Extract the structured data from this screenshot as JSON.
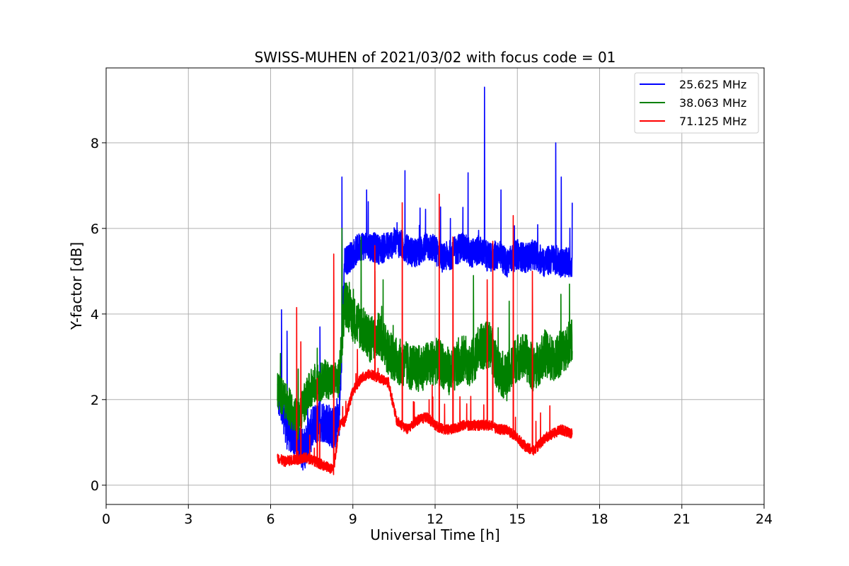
{
  "chart_data": {
    "type": "line",
    "title": "SWISS-MUHEN of 2021/03/02 with focus code = 01",
    "xlabel": "Universal Time [h]",
    "ylabel": "Y-factor [dB]",
    "xlim": [
      0,
      24
    ],
    "ylim": [
      -0.45,
      9.75
    ],
    "xticks": [
      0,
      3,
      6,
      9,
      12,
      15,
      18,
      21,
      24
    ],
    "yticks": [
      0,
      2,
      4,
      6,
      8
    ],
    "grid": true,
    "legend": "top-right",
    "series": [
      {
        "name": "25.625 MHz",
        "color": "#0000ff",
        "x": [
          6.25,
          6.5,
          6.8,
          7.0,
          7.2,
          7.5,
          7.8,
          8.0,
          8.3,
          8.5,
          8.7,
          9.0,
          9.3,
          9.6,
          10.0,
          10.3,
          10.6,
          11.0,
          11.3,
          11.7,
          12.0,
          12.3,
          12.6,
          13.0,
          13.3,
          13.6,
          14.0,
          14.3,
          14.6,
          15.0,
          15.3,
          15.6,
          16.0,
          16.3,
          16.6,
          17.0
        ],
        "y": [
          2.2,
          1.4,
          1.2,
          1.0,
          0.8,
          1.3,
          1.5,
          1.5,
          1.3,
          1.5,
          5.2,
          5.4,
          5.6,
          5.6,
          5.5,
          5.6,
          5.7,
          5.5,
          5.4,
          5.6,
          5.5,
          5.3,
          5.4,
          5.6,
          5.4,
          5.5,
          5.3,
          5.4,
          5.2,
          5.4,
          5.3,
          5.4,
          5.2,
          5.3,
          5.2,
          5.2
        ],
        "spikes": [
          [
            6.4,
            4.1
          ],
          [
            6.6,
            3.6
          ],
          [
            7.8,
            3.7
          ],
          [
            8.6,
            7.2
          ],
          [
            9.5,
            6.9
          ],
          [
            10.9,
            7.35
          ],
          [
            12.2,
            6.5
          ],
          [
            13.2,
            7.3
          ],
          [
            13.8,
            9.3
          ],
          [
            14.4,
            6.9
          ],
          [
            16.4,
            8.0
          ],
          [
            16.6,
            7.2
          ],
          [
            17.0,
            6.6
          ]
        ]
      },
      {
        "name": "38.063 MHz",
        "color": "#008000",
        "x": [
          6.25,
          6.5,
          6.8,
          7.0,
          7.2,
          7.5,
          7.8,
          8.0,
          8.3,
          8.5,
          8.7,
          9.0,
          9.3,
          9.6,
          10.0,
          10.3,
          10.6,
          11.0,
          11.3,
          11.7,
          12.0,
          12.3,
          12.6,
          13.0,
          13.3,
          13.6,
          14.0,
          14.3,
          14.6,
          15.0,
          15.3,
          15.6,
          16.0,
          16.3,
          16.6,
          17.0
        ],
        "y": [
          2.2,
          2.0,
          1.7,
          1.5,
          1.9,
          2.3,
          2.4,
          2.5,
          2.4,
          2.5,
          4.3,
          3.9,
          3.7,
          3.4,
          3.5,
          3.1,
          2.9,
          2.8,
          2.7,
          2.8,
          2.9,
          2.8,
          2.6,
          3.0,
          2.8,
          3.2,
          3.3,
          2.7,
          2.5,
          3.0,
          3.0,
          2.7,
          3.1,
          2.9,
          3.1,
          3.4
        ],
        "spikes": [
          [
            8.6,
            6.0
          ],
          [
            9.3,
            5.8
          ],
          [
            9.8,
            5.0
          ],
          [
            10.1,
            4.8
          ],
          [
            13.4,
            4.9
          ],
          [
            14.7,
            4.3
          ],
          [
            16.9,
            4.7
          ]
        ]
      },
      {
        "name": "71.125 MHz",
        "color": "#ff0000",
        "x": [
          6.25,
          6.5,
          6.8,
          7.0,
          7.2,
          7.5,
          7.8,
          8.0,
          8.3,
          8.5,
          8.7,
          9.0,
          9.3,
          9.6,
          10.0,
          10.3,
          10.6,
          11.0,
          11.3,
          11.7,
          12.0,
          12.3,
          12.6,
          13.0,
          13.3,
          13.6,
          14.0,
          14.3,
          14.6,
          15.0,
          15.3,
          15.6,
          16.0,
          16.3,
          16.6,
          17.0
        ],
        "y": [
          0.65,
          0.55,
          0.6,
          0.6,
          0.65,
          0.6,
          0.5,
          0.45,
          0.35,
          1.4,
          1.5,
          2.2,
          2.5,
          2.6,
          2.5,
          2.4,
          1.5,
          1.3,
          1.5,
          1.6,
          1.4,
          1.3,
          1.3,
          1.4,
          1.4,
          1.4,
          1.4,
          1.3,
          1.3,
          1.1,
          0.9,
          0.8,
          1.1,
          1.2,
          1.3,
          1.2
        ],
        "spikes": [
          [
            6.95,
            4.15
          ],
          [
            7.1,
            3.35
          ],
          [
            7.7,
            2.5
          ],
          [
            8.3,
            5.4
          ],
          [
            9.8,
            5.6
          ],
          [
            10.8,
            6.6
          ],
          [
            12.15,
            6.8
          ],
          [
            12.65,
            5.8
          ],
          [
            13.9,
            4.8
          ],
          [
            14.1,
            5.7
          ],
          [
            14.85,
            6.3
          ],
          [
            15.55,
            5.0
          ]
        ]
      }
    ]
  }
}
